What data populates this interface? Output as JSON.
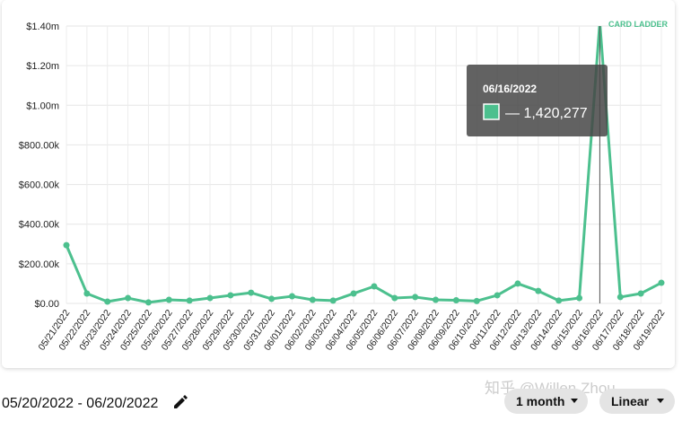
{
  "chart_data": {
    "type": "line",
    "categories": [
      "05/21/2022",
      "05/22/2022",
      "05/23/2022",
      "05/24/2022",
      "05/25/2022",
      "05/26/2022",
      "05/27/2022",
      "05/28/2022",
      "05/29/2022",
      "05/30/2022",
      "05/31/2022",
      "06/01/2022",
      "06/02/2022",
      "06/03/2022",
      "06/04/2022",
      "06/05/2022",
      "06/06/2022",
      "06/07/2022",
      "06/08/2022",
      "06/09/2022",
      "06/10/2022",
      "06/11/2022",
      "06/12/2022",
      "06/13/2022",
      "06/14/2022",
      "06/15/2022",
      "06/16/2022",
      "06/17/2022",
      "06/18/2022",
      "06/19/2022"
    ],
    "values": [
      294000,
      50000,
      9000,
      27000,
      5000,
      18000,
      14000,
      27000,
      41000,
      54000,
      23000,
      36000,
      18000,
      14000,
      50000,
      86000,
      27000,
      32000,
      18000,
      16000,
      12000,
      41000,
      100000,
      63000,
      14000,
      27000,
      1420277,
      32000,
      50000,
      104000
    ],
    "color": "#4cc08e",
    "ylim": [
      0,
      1400000
    ],
    "yticks": [
      {
        "value": 0,
        "label": "$0.00"
      },
      {
        "value": 200000,
        "label": "$200.00k"
      },
      {
        "value": 400000,
        "label": "$400.00k"
      },
      {
        "value": 600000,
        "label": "$600.00k"
      },
      {
        "value": 800000,
        "label": "$800.00k"
      },
      {
        "value": 1000000,
        "label": "$1.00m"
      },
      {
        "value": 1200000,
        "label": "$1.20m"
      },
      {
        "value": 1400000,
        "label": "$1.40m"
      }
    ],
    "grid": true,
    "tooltip": {
      "date": "06/16/2022",
      "value": "— 1,420,277"
    },
    "logo": "CARD LADDER"
  },
  "date_range": "05/20/2022 - 06/20/2022",
  "controls": [
    "1 month",
    "Linear"
  ],
  "watermark": "知乎 @Willen Zhou"
}
